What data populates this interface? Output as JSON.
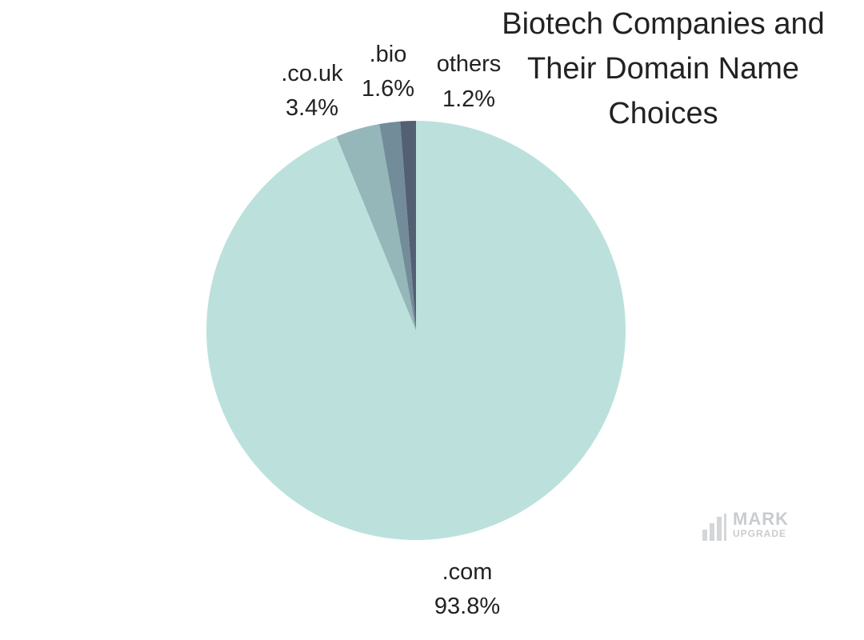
{
  "chart_data": {
    "type": "pie",
    "title": "Biotech Companies and\nTheir Domain Name\nChoices",
    "slices": [
      {
        "label": ".com",
        "value": 93.8,
        "display": "93.8%",
        "color": "#bce1dc"
      },
      {
        "label": ".co.uk",
        "value": 3.4,
        "display": "3.4%",
        "color": "#95b7ba"
      },
      {
        "label": ".bio",
        "value": 1.6,
        "display": "1.6%",
        "color": "#728c9a"
      },
      {
        "label": "others",
        "value": 1.2,
        "display": "1.2%",
        "color": "#535f73"
      }
    ],
    "start": "12 o'clock, clockwise from others",
    "legend": "none"
  },
  "watermark": {
    "word1": "MARK",
    "word2": "UPGRADE"
  }
}
